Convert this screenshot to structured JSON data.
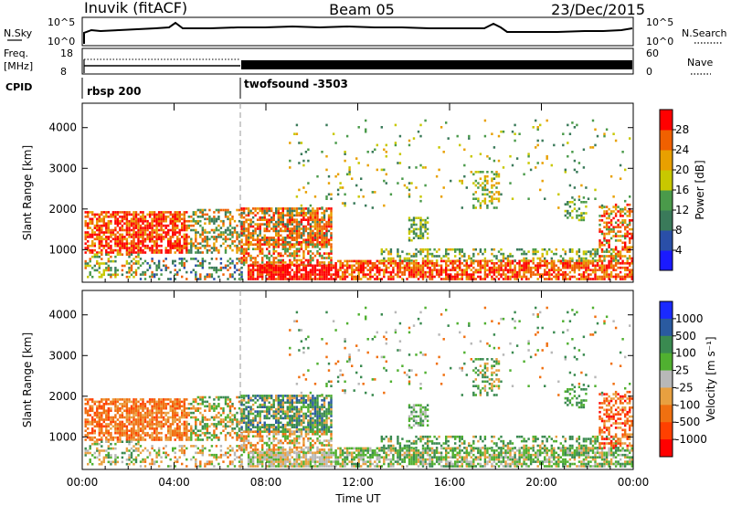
{
  "header": {
    "station": "Inuvik (fitACF)",
    "beam": "Beam 05",
    "date": "23/Dec/2015"
  },
  "noise_panel": {
    "left_label": "N.Sky",
    "right_label": "N.Search",
    "left_ticks": [
      "10^5",
      "10^0"
    ],
    "right_ticks": [
      "10^5",
      "10^0"
    ]
  },
  "freq_panel": {
    "left_label_top": "Freq.",
    "left_label_bottom": "[MHz]",
    "right_label": "Nave",
    "left_ticks": [
      "18",
      "8"
    ],
    "right_ticks": [
      "60",
      "0"
    ]
  },
  "cpid_panel": {
    "label": "CPID",
    "segments": [
      {
        "name": "rbsp 200",
        "start_hour": 0
      },
      {
        "name": "twofsound -3503",
        "start_hour": 6.9
      }
    ]
  },
  "colors": {
    "power_scale": [
      "#1a1aff",
      "#2a4fa8",
      "#3a7a5a",
      "#4a9a4a",
      "#c8c800",
      "#e8a000",
      "#f06000",
      "#ff0000"
    ],
    "velocity_scale": [
      "#1a2aff",
      "#2a5aa0",
      "#3a8a50",
      "#50b030",
      "#b8b8b8",
      "#e8a040",
      "#f07010",
      "#ff4000",
      "#ff0000"
    ]
  },
  "chart_data": [
    {
      "type": "heatmap",
      "name": "power",
      "ylabel": "Slant Range [km]",
      "yticks": [
        "1000",
        "2000",
        "3000",
        "4000"
      ],
      "ylim": [
        200,
        4600
      ],
      "xlim_hours": [
        0,
        24
      ],
      "colorbar_label": "Power [dB]",
      "colorbar_ticks": [
        "4",
        "8",
        "12",
        "16",
        "20",
        "24",
        "28"
      ],
      "colorbar_range": [
        0,
        32
      ]
    },
    {
      "type": "heatmap",
      "name": "velocity",
      "ylabel": "Slant Range [km]",
      "yticks": [
        "1000",
        "2000",
        "3000",
        "4000"
      ],
      "ylim": [
        200,
        4600
      ],
      "xlim_hours": [
        0,
        24
      ],
      "colorbar_label": "Velocity [m s⁻¹]",
      "colorbar_ticks": [
        "1000",
        "500",
        "100",
        "25",
        "-25",
        "-100",
        "-500",
        "-1000"
      ],
      "xlabel": "Time UT",
      "xticks": [
        "00:00",
        "04:00",
        "08:00",
        "12:00",
        "16:00",
        "20:00",
        "00:00"
      ]
    }
  ]
}
